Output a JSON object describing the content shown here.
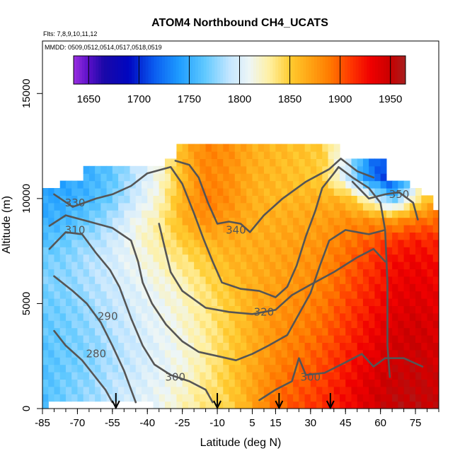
{
  "chart_data": {
    "type": "heatmap",
    "title": "ATOM4 Northbound CH4_UCATS",
    "flights_note": "Flts: 7,8,9,10,11,12",
    "mmdd_note": "MMDD: 0509,0512,0514,0517,0518,0519",
    "xlabel": "Latitude (deg N)",
    "ylabel": "Altitude (m)",
    "xlim": [
      -85,
      85
    ],
    "ylim": [
      0,
      17500
    ],
    "x_ticks": [
      -85,
      -70,
      -55,
      -40,
      -25,
      -10,
      5,
      15,
      30,
      45,
      60,
      75
    ],
    "y_ticks": [
      0,
      5000,
      10000,
      15000
    ],
    "colorbar": {
      "min": 1635,
      "max": 1965,
      "tick_values": [
        1650,
        1700,
        1750,
        1800,
        1850,
        1900,
        1950
      ],
      "tick_labels": [
        "1650",
        "1700",
        "1750",
        "1800",
        "1850",
        "1900",
        "1950"
      ],
      "color_stops": [
        {
          "v": 1635,
          "c": "#9a2fe0"
        },
        {
          "v": 1650,
          "c": "#5a10c8"
        },
        {
          "v": 1665,
          "c": "#1a08a8"
        },
        {
          "v": 1690,
          "c": "#0006c0"
        },
        {
          "v": 1715,
          "c": "#0a5cf0"
        },
        {
          "v": 1740,
          "c": "#1e9cff"
        },
        {
          "v": 1765,
          "c": "#5ec8ff"
        },
        {
          "v": 1790,
          "c": "#c4e6ff"
        },
        {
          "v": 1810,
          "c": "#eef6f6"
        },
        {
          "v": 1830,
          "c": "#fff0a0"
        },
        {
          "v": 1850,
          "c": "#ffcc30"
        },
        {
          "v": 1870,
          "c": "#ffa414"
        },
        {
          "v": 1890,
          "c": "#ff7a00"
        },
        {
          "v": 1910,
          "c": "#ff3800"
        },
        {
          "v": 1930,
          "c": "#f00000"
        },
        {
          "v": 1950,
          "c": "#c80000"
        },
        {
          "v": 1965,
          "c": "#a82020"
        }
      ]
    },
    "field_grid": {
      "lat": [
        -85,
        -75,
        -65,
        -55,
        -45,
        -35,
        -25,
        -15,
        -5,
        5,
        15,
        25,
        35,
        45,
        55,
        65,
        75,
        85
      ],
      "alt": [
        0,
        1000,
        2000,
        3000,
        4000,
        5000,
        6000,
        7000,
        8000,
        9000,
        10000,
        11000,
        12000,
        13000
      ],
      "values": [
        [
          1755,
          1772,
          1780,
          1790,
          1800,
          1810,
          1825,
          1835,
          1845,
          1870,
          1895,
          1905,
          1915,
          1925,
          1940,
          1955,
          1955,
          1950
        ],
        [
          1760,
          1770,
          1778,
          1788,
          1798,
          1808,
          1820,
          1835,
          1850,
          1870,
          1890,
          1900,
          1910,
          1925,
          1940,
          1950,
          1952,
          1948
        ],
        [
          1760,
          1768,
          1775,
          1785,
          1795,
          1805,
          1815,
          1830,
          1850,
          1868,
          1885,
          1895,
          1905,
          1920,
          1935,
          1948,
          1950,
          1945
        ],
        [
          1762,
          1768,
          1775,
          1785,
          1795,
          1805,
          1815,
          1830,
          1848,
          1865,
          1880,
          1890,
          1900,
          1915,
          1930,
          1945,
          1948,
          1942
        ],
        [
          1765,
          1770,
          1778,
          1788,
          1798,
          1808,
          1818,
          1832,
          1848,
          1865,
          1878,
          1885,
          1895,
          1910,
          1925,
          1940,
          1945,
          1940
        ],
        [
          1768,
          1772,
          1780,
          1790,
          1800,
          1810,
          1820,
          1835,
          1850,
          1865,
          1875,
          1882,
          1890,
          1905,
          1920,
          1935,
          1940,
          1935
        ],
        [
          1772,
          1776,
          1784,
          1795,
          1805,
          1815,
          1825,
          1840,
          1855,
          1865,
          1872,
          1878,
          1885,
          1900,
          1915,
          1930,
          1935,
          1930
        ],
        [
          1770,
          1775,
          1785,
          1798,
          1810,
          1822,
          1835,
          1850,
          1860,
          1865,
          1870,
          1875,
          1882,
          1895,
          1910,
          1925,
          1930,
          1925
        ],
        [
          1760,
          1768,
          1780,
          1795,
          1815,
          1830,
          1850,
          1862,
          1865,
          1865,
          1868,
          1872,
          1878,
          1890,
          1900,
          1912,
          1920,
          1915
        ],
        [
          1750,
          1755,
          1768,
          1785,
          1810,
          1830,
          1862,
          1880,
          1875,
          1865,
          1865,
          1868,
          1872,
          1880,
          1880,
          1875,
          1890,
          1895
        ],
        [
          1745,
          1748,
          1755,
          1770,
          1795,
          1820,
          1865,
          1890,
          1880,
          1865,
          1860,
          1862,
          1865,
          1860,
          1820,
          1760,
          1830,
          1870
        ],
        [
          1745,
          1745,
          1752,
          1765,
          1790,
          1815,
          1860,
          1885,
          1880,
          1865,
          1860,
          1855,
          1850,
          1800,
          1730,
          1700,
          1780,
          1850
        ],
        [
          1745,
          1745,
          1752,
          1765,
          1790,
          1815,
          1860,
          1885,
          1880,
          1865,
          1860,
          1855,
          1850,
          1800,
          1730,
          1700,
          1780,
          1850
        ],
        [
          1745,
          1745,
          1752,
          1765,
          1790,
          1815,
          1860,
          1885,
          1880,
          1865,
          1860,
          1855,
          1850,
          1800,
          1730,
          1700,
          1780,
          1850
        ]
      ]
    },
    "data_coverage": [
      {
        "lat": -85,
        "alt_min": 0,
        "alt_max": 10500
      },
      {
        "lat": -80,
        "alt_min": 300,
        "alt_max": 10500
      },
      {
        "lat": -75,
        "alt_min": 300,
        "alt_max": 11000
      },
      {
        "lat": -70,
        "alt_min": 300,
        "alt_max": 11000
      },
      {
        "lat": -65,
        "alt_min": 300,
        "alt_max": 11600
      },
      {
        "lat": -60,
        "alt_min": 300,
        "alt_max": 11600
      },
      {
        "lat": -55,
        "alt_min": 300,
        "alt_max": 11600
      },
      {
        "lat": -50,
        "alt_min": 300,
        "alt_max": 11600
      },
      {
        "lat": -45,
        "alt_min": 300,
        "alt_max": 11600
      },
      {
        "lat": -40,
        "alt_min": 300,
        "alt_max": 11600
      },
      {
        "lat": -35,
        "alt_min": 0,
        "alt_max": 11600
      },
      {
        "lat": -30,
        "alt_min": 0,
        "alt_max": 11800
      },
      {
        "lat": -25,
        "alt_min": 0,
        "alt_max": 12500
      },
      {
        "lat": -20,
        "alt_min": 0,
        "alt_max": 12500
      },
      {
        "lat": -15,
        "alt_min": 0,
        "alt_max": 12500
      },
      {
        "lat": -10,
        "alt_min": 0,
        "alt_max": 12500
      },
      {
        "lat": -5,
        "alt_min": 0,
        "alt_max": 12500
      },
      {
        "lat": 0,
        "alt_min": 0,
        "alt_max": 12500
      },
      {
        "lat": 5,
        "alt_min": 0,
        "alt_max": 12500
      },
      {
        "lat": 10,
        "alt_min": 0,
        "alt_max": 12500
      },
      {
        "lat": 15,
        "alt_min": 0,
        "alt_max": 12500
      },
      {
        "lat": 20,
        "alt_min": 0,
        "alt_max": 12500
      },
      {
        "lat": 25,
        "alt_min": 0,
        "alt_max": 12500
      },
      {
        "lat": 30,
        "alt_min": 0,
        "alt_max": 12500
      },
      {
        "lat": 35,
        "alt_min": 0,
        "alt_max": 12500
      },
      {
        "lat": 40,
        "alt_min": 0,
        "alt_max": 12500
      },
      {
        "lat": 45,
        "alt_min": 0,
        "alt_max": 12000
      },
      {
        "lat": 50,
        "alt_min": 0,
        "alt_max": 12000
      },
      {
        "lat": 55,
        "alt_min": 0,
        "alt_max": 11800
      },
      {
        "lat": 60,
        "alt_min": 0,
        "alt_max": 11800
      },
      {
        "lat": 65,
        "alt_min": 0,
        "alt_max": 11000
      },
      {
        "lat": 70,
        "alt_min": 0,
        "alt_max": 11000
      },
      {
        "lat": 75,
        "alt_min": 0,
        "alt_max": 10500
      },
      {
        "lat": 80,
        "alt_min": 0,
        "alt_max": 10000
      },
      {
        "lat": 83,
        "alt_min": 0,
        "alt_max": 9500
      }
    ],
    "contours": [
      {
        "label": "280",
        "label_lat": -62,
        "label_alt": 2600,
        "points": [
          [
            -80,
            3700
          ],
          [
            -75,
            3000
          ],
          [
            -68,
            2300
          ],
          [
            -63,
            1600
          ],
          [
            -58,
            900
          ],
          [
            -55,
            300
          ]
        ]
      },
      {
        "label": "290",
        "label_lat": -57,
        "label_alt": 4400,
        "points": [
          [
            -80,
            6300
          ],
          [
            -72,
            5600
          ],
          [
            -66,
            5000
          ],
          [
            -60,
            4100
          ],
          [
            -55,
            3000
          ],
          [
            -50,
            1800
          ],
          [
            -47,
            900
          ],
          [
            -45,
            300
          ]
        ]
      },
      {
        "label": "300",
        "label_lat": -28,
        "label_alt": 1500,
        "points": [
          [
            -82,
            7600
          ],
          [
            -75,
            8400
          ],
          [
            -68,
            8300
          ],
          [
            -62,
            7400
          ],
          [
            -56,
            6600
          ],
          [
            -52,
            5800
          ],
          [
            -47,
            4300
          ],
          [
            -42,
            3000
          ],
          [
            -37,
            2100
          ],
          [
            -30,
            1600
          ],
          [
            -22,
            1300
          ],
          [
            -15,
            900
          ],
          [
            -12,
            300
          ]
        ]
      },
      {
        "label": "300",
        "label_lat": 30,
        "label_alt": 1500,
        "points": [
          [
            8,
            400
          ],
          [
            15,
            900
          ],
          [
            22,
            1300
          ],
          [
            25,
            2400
          ],
          [
            28,
            1600
          ],
          [
            36,
            1700
          ],
          [
            45,
            2200
          ],
          [
            52,
            2600
          ],
          [
            57,
            2000
          ],
          [
            62,
            2400
          ],
          [
            70,
            2400
          ],
          [
            78,
            2000
          ]
        ]
      },
      {
        "label": "310",
        "label_lat": -71,
        "label_alt": 8500,
        "points": [
          [
            -82,
            8700
          ],
          [
            -75,
            9200
          ],
          [
            -65,
            8900
          ],
          [
            -55,
            8600
          ],
          [
            -47,
            8000
          ],
          [
            -44,
            7000
          ],
          [
            -42,
            6000
          ],
          [
            -38,
            5000
          ],
          [
            -32,
            4000
          ],
          [
            -25,
            3200
          ],
          [
            -18,
            2700
          ],
          [
            -10,
            2500
          ],
          [
            -2,
            2300
          ],
          [
            5,
            2600
          ],
          [
            12,
            3000
          ],
          [
            20,
            3500
          ],
          [
            25,
            4500
          ],
          [
            30,
            5500
          ],
          [
            34,
            6800
          ],
          [
            38,
            8000
          ],
          [
            45,
            8500
          ],
          [
            55,
            8300
          ],
          [
            62,
            8500
          ]
        ]
      },
      {
        "label": "320",
        "label_lat": 10,
        "label_alt": 4600,
        "points": [
          [
            -35,
            8800
          ],
          [
            -32,
            7400
          ],
          [
            -30,
            6500
          ],
          [
            -25,
            5600
          ],
          [
            -15,
            4800
          ],
          [
            -5,
            4600
          ],
          [
            5,
            4500
          ],
          [
            15,
            4700
          ],
          [
            22,
            5400
          ],
          [
            30,
            5900
          ],
          [
            40,
            6500
          ],
          [
            50,
            7200
          ],
          [
            57,
            7600
          ],
          [
            62,
            7000
          ]
        ]
      },
      {
        "label": "330",
        "label_lat": -71,
        "label_alt": 9800,
        "points": [
          [
            -80,
            10200
          ],
          [
            -72,
            9600
          ],
          [
            -62,
            10000
          ],
          [
            -55,
            10200
          ],
          [
            -47,
            10600
          ],
          [
            -40,
            11200
          ],
          [
            -30,
            11500
          ],
          [
            -25,
            10700
          ],
          [
            -20,
            9300
          ],
          [
            -16,
            8100
          ],
          [
            -12,
            7000
          ],
          [
            -8,
            6000
          ],
          [
            0,
            5700
          ],
          [
            8,
            5600
          ],
          [
            15,
            5300
          ],
          [
            20,
            5800
          ],
          [
            24,
            6800
          ],
          [
            28,
            8200
          ],
          [
            32,
            9400
          ],
          [
            35,
            10500
          ],
          [
            40,
            11200
          ],
          [
            42,
            11500
          ],
          [
            48,
            11000
          ],
          [
            55,
            10500
          ],
          [
            60,
            9800
          ],
          [
            62,
            8500
          ],
          [
            63,
            6000
          ],
          [
            63,
            3000
          ],
          [
            64,
            1500
          ]
        ]
      },
      {
        "label": "340",
        "label_lat": -2,
        "label_alt": 8500,
        "points": [
          [
            -28,
            11800
          ],
          [
            -22,
            11600
          ],
          [
            -18,
            11000
          ],
          [
            -14,
            9800
          ],
          [
            -10,
            8800
          ],
          [
            -5,
            8900
          ],
          [
            0,
            8800
          ],
          [
            4,
            8400
          ],
          [
            10,
            9200
          ],
          [
            18,
            10000
          ],
          [
            28,
            10800
          ],
          [
            38,
            11400
          ],
          [
            43,
            11900
          ],
          [
            50,
            11300
          ],
          [
            57,
            11000
          ]
        ]
      },
      {
        "label": "350",
        "label_lat": 68,
        "label_alt": 10200,
        "points": [
          [
            48,
            10800
          ],
          [
            55,
            10000
          ],
          [
            62,
            10200
          ],
          [
            68,
            10300
          ],
          [
            74,
            9800
          ],
          [
            76,
            9000
          ]
        ]
      }
    ],
    "arrows_lat": [
      -53.5,
      -10,
      16.5,
      38.5
    ]
  }
}
